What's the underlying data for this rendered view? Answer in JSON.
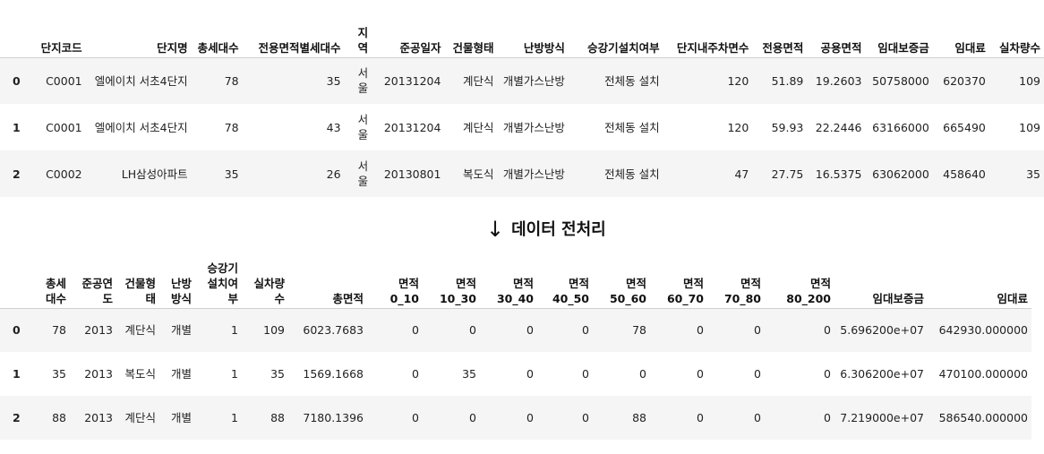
{
  "table1": {
    "columns": [
      "",
      "단지코드",
      "단지명",
      "총세대수",
      "전용면적별세대수",
      "지역",
      "준공일자",
      "건물형태",
      "난방방식",
      "승강기설치여부",
      "단지내주차면수",
      "전용면적",
      "공용면적",
      "임대보증금",
      "임대료",
      "실차량수"
    ],
    "rows": [
      [
        "0",
        "C0001",
        "엘에이치 서초4단지",
        "78",
        "35",
        "서울",
        "20131204",
        "계단식",
        "개별가스난방",
        "전체동 설치",
        "120",
        "51.89",
        "19.2603",
        "50758000",
        "620370",
        "109"
      ],
      [
        "1",
        "C0001",
        "엘에이치 서초4단지",
        "78",
        "43",
        "서울",
        "20131204",
        "계단식",
        "개별가스난방",
        "전체동 설치",
        "120",
        "59.93",
        "22.2446",
        "63166000",
        "665490",
        "109"
      ],
      [
        "2",
        "C0002",
        "LH삼성아파트",
        "35",
        "26",
        "서울",
        "20130801",
        "복도식",
        "개별가스난방",
        "전체동 설치",
        "47",
        "27.75",
        "16.5375",
        "63062000",
        "458640",
        "35"
      ]
    ]
  },
  "transition": {
    "arrow": "↓",
    "label": "데이터 전처리"
  },
  "table2": {
    "columns": [
      "",
      "총세대수",
      "준공연도",
      "건물형태",
      "난방방식",
      "승강기설치여부",
      "실차량수",
      "총면적",
      "면적 0_10",
      "면적 10_30",
      "면적 30_40",
      "면적 40_50",
      "면적 50_60",
      "면적 60_70",
      "면적 70_80",
      "면적 80_200",
      "임대보증금",
      "임대료"
    ],
    "rows": [
      [
        "0",
        "78",
        "2013",
        "계단식",
        "개별",
        "1",
        "109",
        "6023.7683",
        "0",
        "0",
        "0",
        "0",
        "78",
        "0",
        "0",
        "0",
        "5.696200e+07",
        "642930.000000"
      ],
      [
        "1",
        "35",
        "2013",
        "복도식",
        "개별",
        "1",
        "35",
        "1569.1668",
        "0",
        "35",
        "0",
        "0",
        "0",
        "0",
        "0",
        "0",
        "6.306200e+07",
        "470100.000000"
      ],
      [
        "2",
        "88",
        "2013",
        "계단식",
        "개별",
        "1",
        "88",
        "7180.1396",
        "0",
        "0",
        "0",
        "0",
        "88",
        "0",
        "0",
        "0",
        "7.219000e+07",
        "586540.000000"
      ]
    ]
  }
}
